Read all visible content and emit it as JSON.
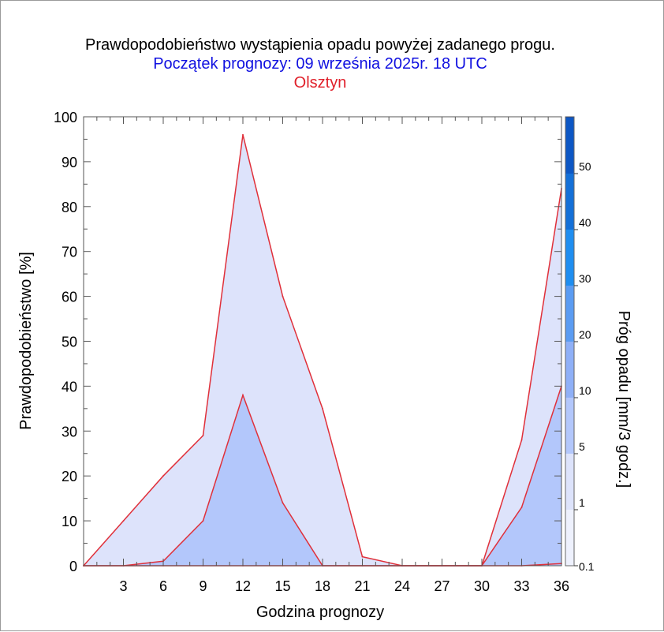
{
  "colors": {
    "title": "#000000",
    "subtitle": "#1010e0",
    "location": "#e0202a",
    "fill_low": "#dde3fb",
    "fill_high": "#b3c7fb",
    "line": "#e0303a",
    "grid": "#555555"
  },
  "chart_data": {
    "type": "area",
    "title": "Prawdopodobieństwo wystąpienia opadu powyżej zadanego progu.",
    "subtitle": "Początek prognozy: 09 września 2025r. 18 UTC",
    "location": "Olsztyn",
    "xlabel": "Godzina prognozy",
    "ylabel": "Prawdopodobieństwo [%]",
    "xlim": [
      0,
      36
    ],
    "ylim": [
      0,
      100
    ],
    "x": [
      0,
      3,
      6,
      9,
      12,
      15,
      18,
      21,
      24,
      27,
      30,
      33,
      36
    ],
    "x_ticks": [
      "3",
      "6",
      "9",
      "12",
      "15",
      "18",
      "21",
      "24",
      "27",
      "30",
      "33",
      "36"
    ],
    "y_ticks": [
      "0",
      "10",
      "20",
      "30",
      "40",
      "50",
      "60",
      "70",
      "80",
      "90",
      "100"
    ],
    "grid": true,
    "series": [
      {
        "threshold": "0.1",
        "values": [
          0,
          10,
          20,
          29,
          96,
          60,
          35,
          2,
          0,
          0,
          0,
          28,
          84
        ]
      },
      {
        "threshold": "1",
        "values": [
          0,
          0,
          1,
          10,
          38,
          14,
          0,
          0,
          0,
          0,
          0,
          13,
          40
        ]
      },
      {
        "threshold": "5",
        "values": [
          0,
          0,
          0,
          0,
          0,
          0,
          0,
          0,
          0,
          0,
          0,
          0,
          0.5
        ]
      }
    ],
    "colorbar": {
      "label": "Próg opadu [mm/3 godz.]",
      "levels": [
        "0.1",
        "1",
        "5",
        "10",
        "20",
        "30",
        "40",
        "50"
      ],
      "colors": [
        "#eef1fd",
        "#dde3fb",
        "#b3c7fb",
        "#8fb0f7",
        "#5b9cf2",
        "#1f8ef0",
        "#1470d8",
        "#0d57c4",
        "#0a3fa8"
      ]
    }
  }
}
